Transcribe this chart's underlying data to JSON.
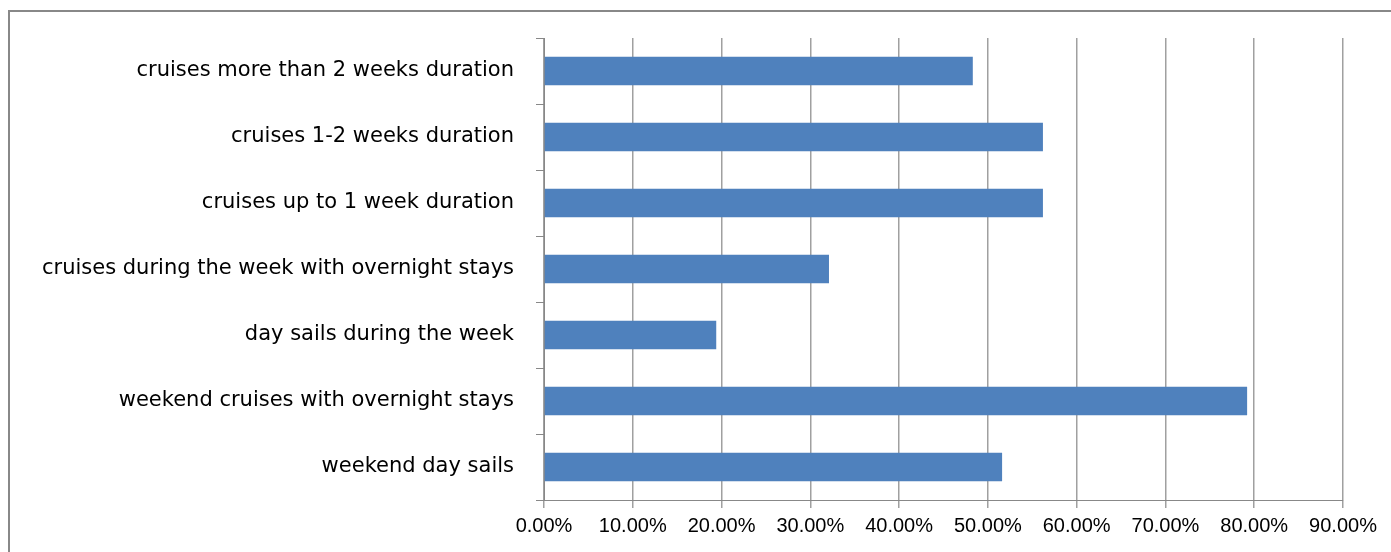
{
  "chart_data": {
    "type": "bar",
    "orientation": "horizontal",
    "categories": [
      "cruises more than 2 weeks duration",
      "cruises 1-2 weeks duration",
      "cruises up to 1 week duration",
      "cruises during the week with overnight stays",
      "day sails during the week",
      "weekend cruises with overnight stays",
      "weekend day sails"
    ],
    "values": [
      48.3,
      56.2,
      56.2,
      32.1,
      19.4,
      79.2,
      51.6
    ],
    "color": "#4f81bd",
    "xlim": [
      0,
      90
    ],
    "xticks": [
      {
        "value": 0,
        "label": "0.00%"
      },
      {
        "value": 10,
        "label": "10.00%"
      },
      {
        "value": 20,
        "label": "20.00%"
      },
      {
        "value": 30,
        "label": "30.00%"
      },
      {
        "value": 40,
        "label": "40.00%"
      },
      {
        "value": 50,
        "label": "50.00%"
      },
      {
        "value": 60,
        "label": "60.00%"
      },
      {
        "value": 70,
        "label": "70.00%"
      },
      {
        "value": 80,
        "label": "80.00%"
      },
      {
        "value": 90,
        "label": "90.00%"
      }
    ],
    "grid": "x",
    "legend": false
  }
}
